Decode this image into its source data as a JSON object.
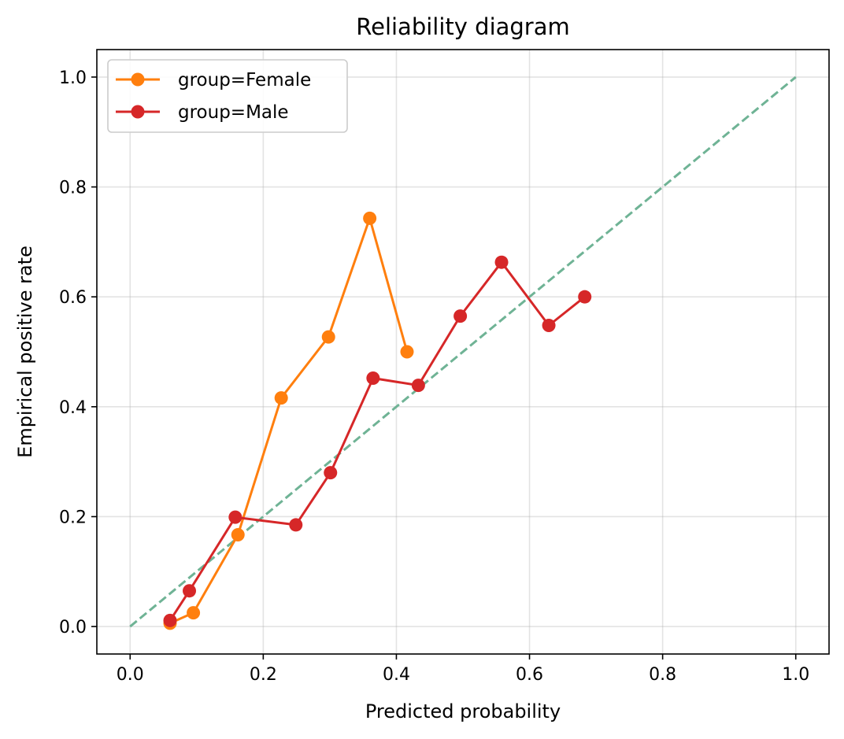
{
  "chart_data": {
    "type": "line",
    "title": "Reliability diagram",
    "xlabel": "Predicted probability",
    "ylabel": "Empirical positive rate",
    "xlim": [
      -0.05,
      1.05
    ],
    "ylim": [
      -0.05,
      1.05
    ],
    "xticks": [
      0.0,
      0.2,
      0.4,
      0.6,
      0.8,
      1.0
    ],
    "yticks": [
      0.0,
      0.2,
      0.4,
      0.6,
      0.8,
      1.0
    ],
    "xtick_labels": [
      "0.0",
      "0.2",
      "0.4",
      "0.6",
      "0.8",
      "1.0"
    ],
    "ytick_labels": [
      "0.0",
      "0.2",
      "0.4",
      "0.6",
      "0.8",
      "1.0"
    ],
    "grid": true,
    "legend_position": "top-left",
    "reference_line": {
      "style": "dashed",
      "color": "#6fb395",
      "x": [
        0.0,
        1.0
      ],
      "y": [
        0.0,
        1.0
      ]
    },
    "series": [
      {
        "name": "group=Female",
        "color": "#ff7f0e",
        "x": [
          0.06,
          0.095,
          0.162,
          0.227,
          0.298,
          0.36,
          0.416
        ],
        "y": [
          0.006,
          0.025,
          0.167,
          0.416,
          0.527,
          0.743,
          0.5
        ]
      },
      {
        "name": "group=Male",
        "color": "#d62728",
        "x": [
          0.06,
          0.089,
          0.158,
          0.249,
          0.301,
          0.365,
          0.433,
          0.496,
          0.558,
          0.629,
          0.683
        ],
        "y": [
          0.011,
          0.065,
          0.199,
          0.185,
          0.28,
          0.452,
          0.439,
          0.565,
          0.663,
          0.548,
          0.6
        ]
      }
    ]
  }
}
